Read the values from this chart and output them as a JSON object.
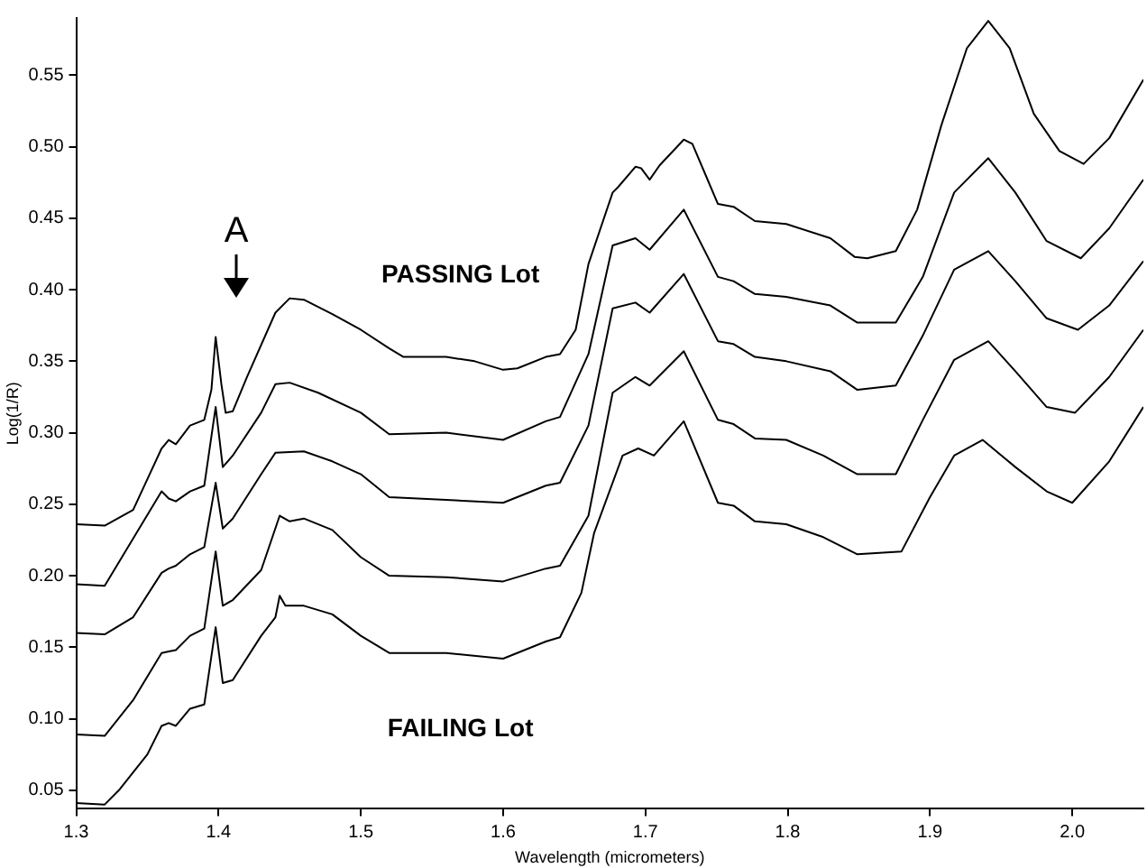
{
  "chart_data": {
    "type": "line",
    "xlabel": "Wavelength (micrometers)",
    "ylabel": "Log(1/R)",
    "xlim": [
      1.3,
      2.05
    ],
    "ylim": [
      0.037,
      0.59
    ],
    "xticks": [
      1.3,
      1.4,
      1.5,
      1.6,
      1.7,
      1.8,
      1.9,
      {
        "value": 2,
        "label": "2.0"
      }
    ],
    "yticks": [
      0.05,
      {
        "value": 0.1,
        "label": "0.10"
      },
      0.15,
      {
        "value": 0.2,
        "label": "0.20"
      },
      0.25,
      {
        "value": 0.3,
        "label": "0.30"
      },
      0.35,
      {
        "value": 0.4,
        "label": "0.40"
      },
      0.45,
      {
        "value": 0.5,
        "label": "0.50"
      },
      0.55
    ],
    "grid": false,
    "legend": false,
    "marker": "none",
    "line_style": "solid",
    "annotations": [
      "A",
      "PASSING Lot",
      "FAILING Lot"
    ],
    "series": [
      {
        "color": "#000000",
        "x": [
          1.3,
          1.32,
          1.34,
          1.36,
          1.365,
          1.37,
          1.38,
          1.39,
          1.395,
          1.398,
          1.402,
          1.405,
          1.41,
          1.42,
          1.44,
          1.45,
          1.46,
          1.48,
          1.5,
          1.52,
          1.53,
          1.56,
          1.58,
          1.6,
          1.61,
          1.63,
          1.64,
          1.651,
          1.66,
          1.677,
          1.681,
          1.693,
          1.697,
          1.703,
          1.71,
          1.727,
          1.733,
          1.742,
          1.751,
          1.762,
          1.777,
          1.799,
          1.83,
          1.847,
          1.856,
          1.876,
          1.891,
          1.908,
          1.926,
          1.941,
          1.956,
          1.973,
          1.991,
          2.008,
          2.026,
          2.05
        ],
        "values": [
          0.236,
          0.235,
          0.246,
          0.289,
          0.295,
          0.292,
          0.305,
          0.309,
          0.33,
          0.367,
          0.334,
          0.314,
          0.315,
          0.339,
          0.384,
          0.394,
          0.393,
          0.383,
          0.372,
          0.359,
          0.353,
          0.353,
          0.35,
          0.344,
          0.345,
          0.353,
          0.355,
          0.372,
          0.418,
          0.468,
          0.472,
          0.486,
          0.485,
          0.477,
          0.487,
          0.505,
          0.502,
          0.481,
          0.46,
          0.458,
          0.448,
          0.446,
          0.436,
          0.423,
          0.422,
          0.427,
          0.456,
          0.515,
          0.569,
          0.588,
          0.569,
          0.523,
          0.497,
          0.488,
          0.506,
          0.547
        ]
      },
      {
        "color": "#000000",
        "x": [
          1.3,
          1.32,
          1.36,
          1.365,
          1.37,
          1.38,
          1.39,
          1.398,
          1.403,
          1.41,
          1.43,
          1.44,
          1.45,
          1.47,
          1.5,
          1.52,
          1.56,
          1.6,
          1.63,
          1.64,
          1.66,
          1.677,
          1.693,
          1.703,
          1.727,
          1.751,
          1.762,
          1.777,
          1.799,
          1.83,
          1.849,
          1.876,
          1.895,
          1.917,
          1.941,
          1.96,
          1.982,
          2.006,
          2.026,
          2.05
        ],
        "values": [
          0.194,
          0.193,
          0.259,
          0.254,
          0.252,
          0.259,
          0.263,
          0.318,
          0.276,
          0.284,
          0.314,
          0.334,
          0.335,
          0.328,
          0.314,
          0.299,
          0.3,
          0.295,
          0.308,
          0.311,
          0.355,
          0.431,
          0.436,
          0.428,
          0.456,
          0.409,
          0.406,
          0.397,
          0.395,
          0.389,
          0.377,
          0.377,
          0.409,
          0.468,
          0.492,
          0.468,
          0.434,
          0.422,
          0.443,
          0.477
        ]
      },
      {
        "color": "#000000",
        "x": [
          1.3,
          1.32,
          1.34,
          1.36,
          1.365,
          1.37,
          1.38,
          1.39,
          1.398,
          1.403,
          1.41,
          1.43,
          1.44,
          1.46,
          1.48,
          1.5,
          1.52,
          1.56,
          1.6,
          1.63,
          1.64,
          1.66,
          1.677,
          1.693,
          1.703,
          1.727,
          1.751,
          1.762,
          1.777,
          1.799,
          1.83,
          1.849,
          1.876,
          1.895,
          1.917,
          1.941,
          1.96,
          1.982,
          2.004,
          2.026,
          2.05
        ],
        "values": [
          0.16,
          0.159,
          0.171,
          0.202,
          0.205,
          0.207,
          0.215,
          0.22,
          0.265,
          0.233,
          0.24,
          0.271,
          0.286,
          0.287,
          0.28,
          0.271,
          0.255,
          0.253,
          0.251,
          0.263,
          0.265,
          0.305,
          0.387,
          0.391,
          0.384,
          0.411,
          0.364,
          0.362,
          0.353,
          0.35,
          0.343,
          0.33,
          0.333,
          0.368,
          0.414,
          0.427,
          0.406,
          0.38,
          0.372,
          0.389,
          0.42
        ]
      },
      {
        "color": "#000000",
        "x": [
          1.3,
          1.32,
          1.34,
          1.36,
          1.365,
          1.37,
          1.38,
          1.39,
          1.398,
          1.403,
          1.41,
          1.43,
          1.443,
          1.45,
          1.46,
          1.48,
          1.5,
          1.52,
          1.56,
          1.6,
          1.63,
          1.64,
          1.66,
          1.677,
          1.693,
          1.703,
          1.727,
          1.751,
          1.762,
          1.777,
          1.799,
          1.825,
          1.849,
          1.876,
          1.895,
          1.917,
          1.941,
          1.96,
          1.982,
          2.002,
          2.026,
          2.05
        ],
        "values": [
          0.089,
          0.088,
          0.113,
          0.146,
          0.147,
          0.148,
          0.158,
          0.163,
          0.217,
          0.179,
          0.183,
          0.204,
          0.242,
          0.238,
          0.24,
          0.232,
          0.213,
          0.2,
          0.199,
          0.196,
          0.205,
          0.207,
          0.242,
          0.328,
          0.339,
          0.333,
          0.357,
          0.309,
          0.306,
          0.296,
          0.295,
          0.284,
          0.271,
          0.271,
          0.309,
          0.351,
          0.364,
          0.343,
          0.318,
          0.314,
          0.339,
          0.372
        ]
      },
      {
        "color": "#000000",
        "x": [
          1.3,
          1.32,
          1.33,
          1.35,
          1.36,
          1.365,
          1.37,
          1.38,
          1.39,
          1.398,
          1.403,
          1.41,
          1.43,
          1.44,
          1.443,
          1.447,
          1.46,
          1.48,
          1.5,
          1.52,
          1.56,
          1.6,
          1.63,
          1.64,
          1.655,
          1.664,
          1.684,
          1.695,
          1.706,
          1.727,
          1.751,
          1.762,
          1.777,
          1.799,
          1.825,
          1.849,
          1.88,
          1.9,
          1.917,
          1.937,
          1.96,
          1.982,
          2.0,
          2.026,
          2.05
        ],
        "values": [
          0.041,
          0.04,
          0.05,
          0.075,
          0.095,
          0.097,
          0.095,
          0.107,
          0.11,
          0.164,
          0.125,
          0.127,
          0.158,
          0.171,
          0.186,
          0.179,
          0.179,
          0.173,
          0.158,
          0.146,
          0.146,
          0.142,
          0.154,
          0.157,
          0.188,
          0.23,
          0.284,
          0.289,
          0.284,
          0.308,
          0.251,
          0.249,
          0.238,
          0.236,
          0.227,
          0.215,
          0.217,
          0.255,
          0.284,
          0.295,
          0.276,
          0.259,
          0.251,
          0.28,
          0.318
        ]
      }
    ]
  }
}
